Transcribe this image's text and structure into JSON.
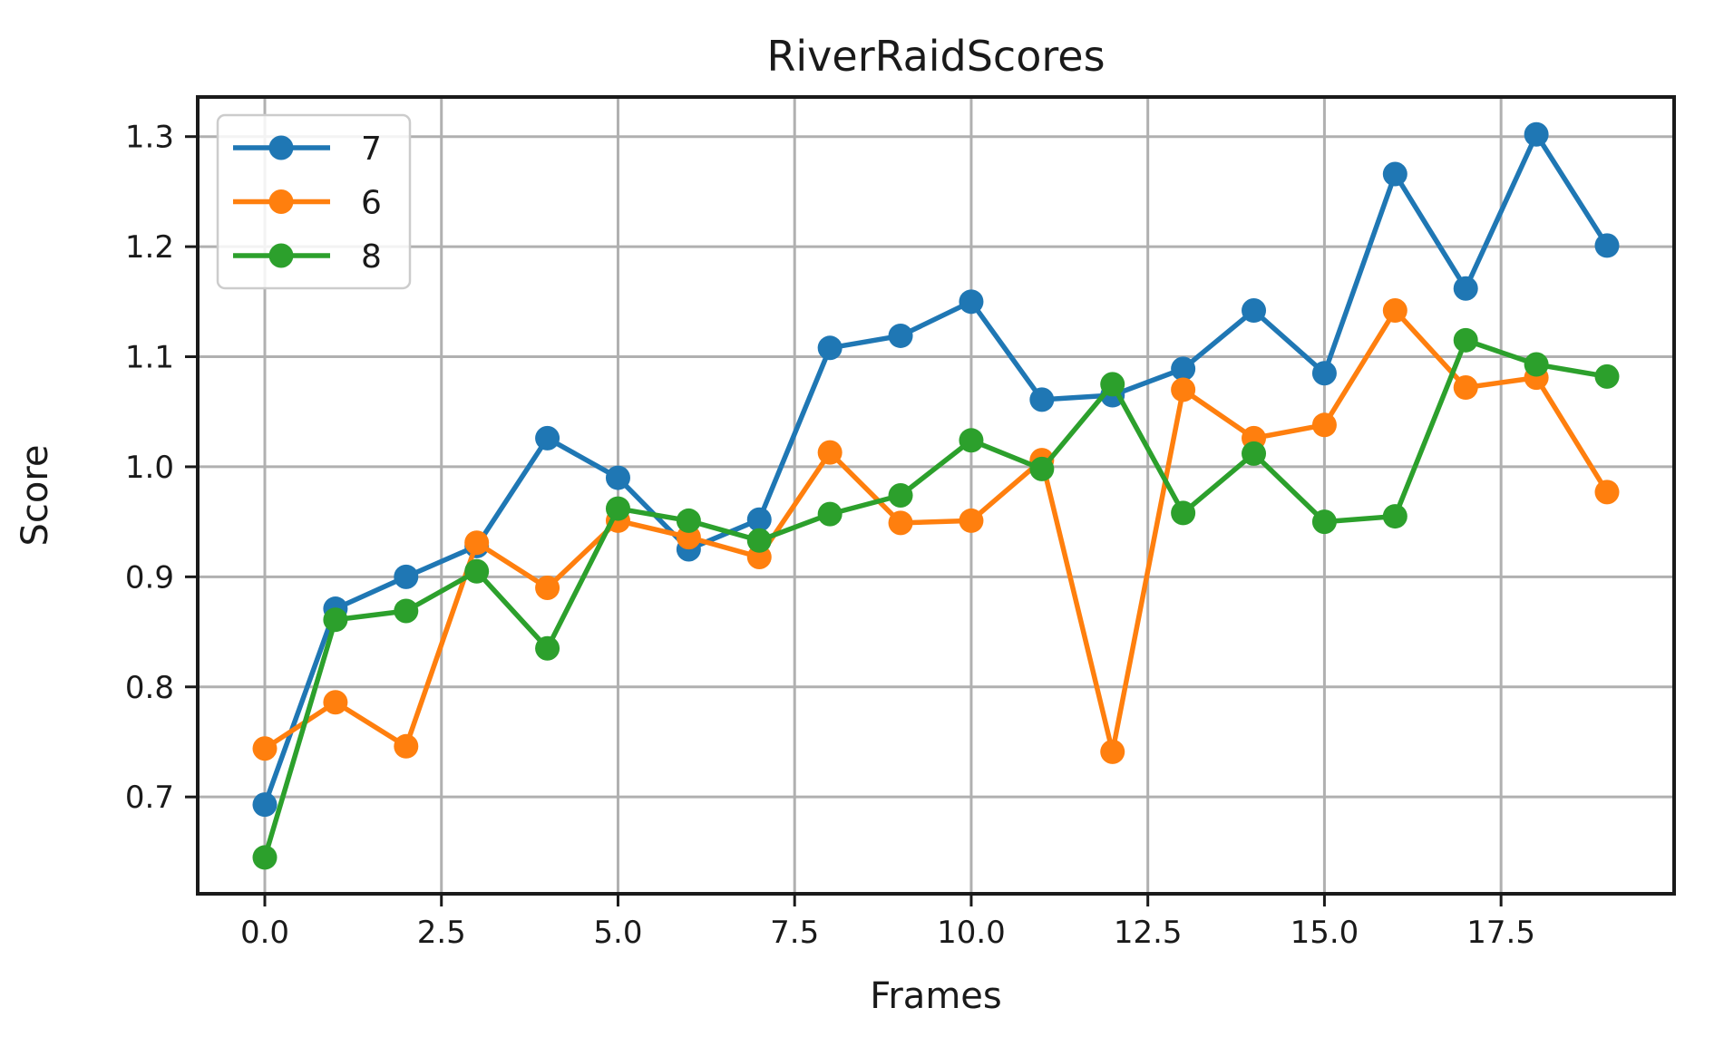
{
  "chart_data": {
    "type": "line",
    "title": "RiverRaidScores",
    "xlabel": "Frames",
    "ylabel": "Score",
    "x": [
      0,
      1,
      2,
      3,
      4,
      5,
      6,
      7,
      8,
      9,
      10,
      11,
      12,
      13,
      14,
      15,
      16,
      17,
      18,
      19
    ],
    "series": [
      {
        "name": "7",
        "color": "#1f77b4",
        "values": [
          0.693,
          0.871,
          0.9,
          0.928,
          1.026,
          0.99,
          0.925,
          0.952,
          1.108,
          1.119,
          1.15,
          1.061,
          1.065,
          1.089,
          1.142,
          1.085,
          1.266,
          1.162,
          1.302,
          1.201
        ]
      },
      {
        "name": "6",
        "color": "#ff7f0e",
        "values": [
          0.744,
          0.786,
          0.746,
          0.931,
          0.89,
          0.951,
          0.936,
          0.918,
          1.013,
          0.949,
          0.951,
          1.006,
          0.741,
          1.07,
          1.026,
          1.038,
          1.142,
          1.072,
          1.081,
          0.977
        ]
      },
      {
        "name": "8",
        "color": "#2ca02c",
        "values": [
          0.645,
          0.861,
          0.869,
          0.905,
          0.835,
          0.962,
          0.951,
          0.933,
          0.957,
          0.974,
          1.024,
          0.998,
          1.075,
          0.958,
          1.012,
          0.95,
          0.955,
          1.115,
          1.093,
          1.082
        ]
      }
    ],
    "xticks": [
      0,
      2.5,
      5,
      7.5,
      10,
      12.5,
      15,
      17.5
    ],
    "xtick_labels": [
      "0.0",
      "2.5",
      "5.0",
      "7.5",
      "10.0",
      "12.5",
      "15.0",
      "17.5"
    ],
    "yticks": [
      0.7,
      0.8,
      0.9,
      1.0,
      1.1,
      1.2,
      1.3
    ],
    "ytick_labels": [
      "0.7",
      "0.8",
      "0.9",
      "1.0",
      "1.1",
      "1.2",
      "1.3"
    ],
    "xlim": [
      -0.95,
      19.95
    ],
    "ylim": [
      0.612,
      1.336
    ],
    "grid": true,
    "legend_position": "upper left",
    "grid_color": "#b0b0b0",
    "spine_color": "#1a1a1a",
    "text_color": "#1a1a1a"
  }
}
